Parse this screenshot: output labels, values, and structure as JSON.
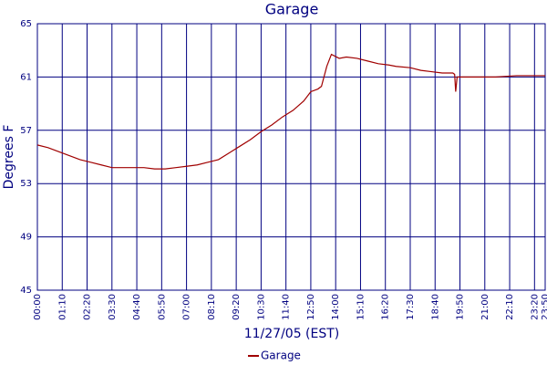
{
  "chart_data": {
    "type": "line",
    "title": "Garage",
    "xlabel": "11/27/05 (EST)",
    "ylabel": "Degrees F",
    "x": [
      0,
      30,
      60,
      90,
      120,
      150,
      180,
      210,
      240,
      270,
      300,
      330,
      360,
      390,
      420,
      450,
      480,
      510,
      540,
      570,
      600,
      630,
      660,
      690,
      720,
      750,
      770,
      790,
      800,
      815,
      828,
      850,
      870,
      900,
      930,
      960,
      990,
      1010,
      1050,
      1080,
      1110,
      1140,
      1170,
      1175,
      1178,
      1182,
      1230,
      1290,
      1350,
      1410,
      1430
    ],
    "series": [
      {
        "name": "Garage",
        "color": "#a00000",
        "values": [
          55.9,
          55.7,
          55.4,
          55.1,
          54.8,
          54.6,
          54.4,
          54.2,
          54.2,
          54.2,
          54.2,
          54.1,
          54.1,
          54.2,
          54.3,
          54.4,
          54.6,
          54.8,
          55.3,
          55.8,
          56.3,
          56.9,
          57.4,
          58.0,
          58.5,
          59.2,
          59.9,
          60.1,
          60.3,
          61.8,
          62.7,
          62.4,
          62.5,
          62.4,
          62.2,
          62.0,
          61.9,
          61.8,
          61.7,
          61.5,
          61.4,
          61.3,
          61.3,
          61.2,
          59.9,
          61.0,
          61.0,
          61.0,
          61.1,
          61.1,
          61.1
        ]
      }
    ],
    "xlim": [
      0,
      1430
    ],
    "xticks": [
      {
        "value": 0,
        "label": "00:00"
      },
      {
        "value": 70,
        "label": "01:10"
      },
      {
        "value": 140,
        "label": "02:20"
      },
      {
        "value": 210,
        "label": "03:30"
      },
      {
        "value": 280,
        "label": "04:40"
      },
      {
        "value": 350,
        "label": "05:50"
      },
      {
        "value": 420,
        "label": "07:00"
      },
      {
        "value": 490,
        "label": "08:10"
      },
      {
        "value": 560,
        "label": "09:20"
      },
      {
        "value": 630,
        "label": "10:30"
      },
      {
        "value": 700,
        "label": "11:40"
      },
      {
        "value": 770,
        "label": "12:50"
      },
      {
        "value": 840,
        "label": "14:00"
      },
      {
        "value": 910,
        "label": "15:10"
      },
      {
        "value": 980,
        "label": "16:20"
      },
      {
        "value": 1050,
        "label": "17:30"
      },
      {
        "value": 1120,
        "label": "18:40"
      },
      {
        "value": 1190,
        "label": "19:50"
      },
      {
        "value": 1260,
        "label": "21:00"
      },
      {
        "value": 1330,
        "label": "22:10"
      },
      {
        "value": 1400,
        "label": "23:20"
      },
      {
        "value": 1430,
        "label": "23:50"
      }
    ],
    "ylim": [
      45,
      65
    ],
    "yticks": [
      45,
      49,
      53,
      57,
      61,
      65
    ],
    "grid": true,
    "grid_color": "#000080",
    "legend": "bottom"
  }
}
